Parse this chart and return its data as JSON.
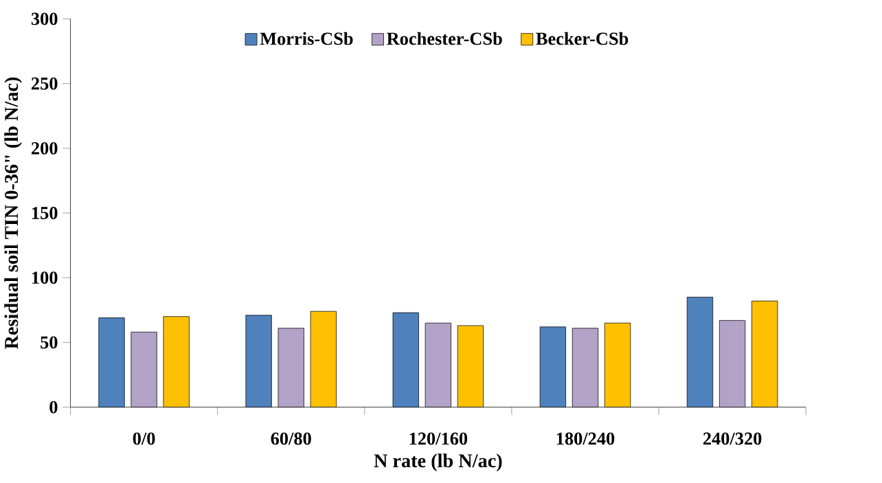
{
  "chart_data": {
    "type": "bar",
    "xlabel": "N rate (lb N/ac)",
    "ylabel": "Residual soil TIN 0-36\" (lb N/ac)",
    "categories": [
      "0/0",
      "60/80",
      "120/160",
      "180/240",
      "240/320"
    ],
    "series": [
      {
        "name": "Morris-CSb",
        "color": "#4f81bd",
        "values": [
          69,
          71,
          73,
          62,
          85
        ]
      },
      {
        "name": "Rochester-CSb",
        "color": "#b3a2c7",
        "values": [
          58,
          61,
          65,
          61,
          67
        ]
      },
      {
        "name": "Becker-CSb",
        "color": "#ffc000",
        "values": [
          70,
          74,
          63,
          65,
          82
        ]
      }
    ],
    "ylim": [
      0,
      300
    ],
    "yticks": [
      0,
      50,
      100,
      150,
      200,
      250,
      300
    ],
    "grid": false,
    "legend": "top"
  }
}
